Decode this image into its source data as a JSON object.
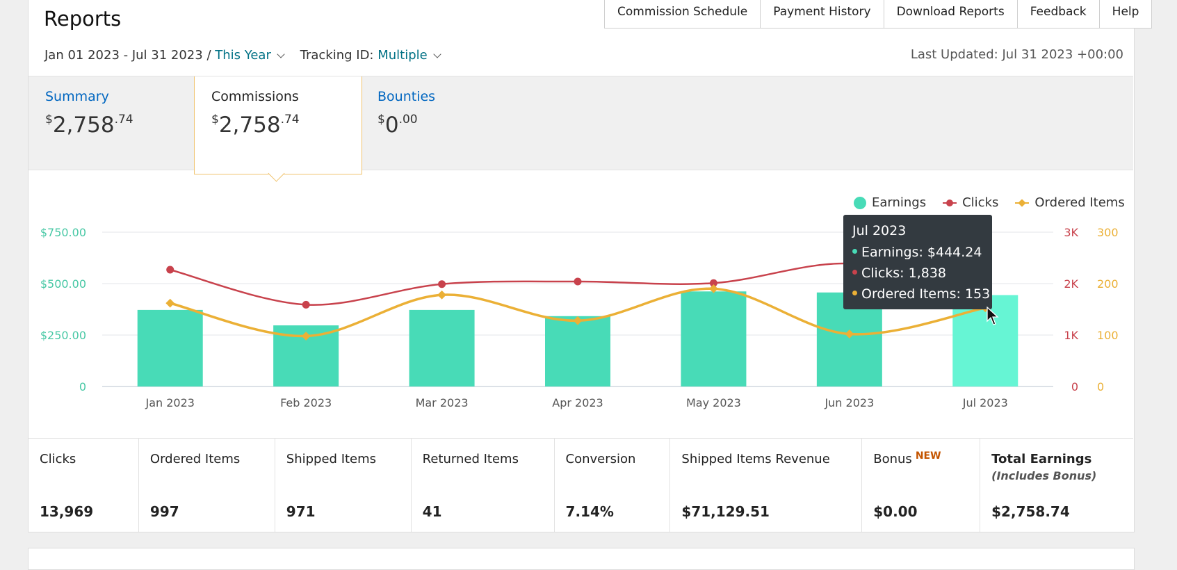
{
  "header": {
    "title": "Reports"
  },
  "top_links": [
    "Commission Schedule",
    "Payment History",
    "Download Reports",
    "Feedback",
    "Help"
  ],
  "filters": {
    "date_range": "Jan 01 2023 - Jul 31 2023 /",
    "period": "This Year",
    "tracking_label": "Tracking ID:",
    "tracking_value": "Multiple"
  },
  "last_updated": "Last Updated: Jul 31 2023 +00:00",
  "tabs": [
    {
      "label": "Summary",
      "currency": "$",
      "whole": "2,758",
      "cents": ".74"
    },
    {
      "label": "Commissions",
      "currency": "$",
      "whole": "2,758",
      "cents": ".74"
    },
    {
      "label": "Bounties",
      "currency": "$",
      "whole": "0",
      "cents": ".00"
    }
  ],
  "legend": [
    "Earnings",
    "Clicks",
    "Ordered Items"
  ],
  "tooltip": {
    "title": "Jul 2023",
    "rows": [
      "Earnings: $444.24",
      "Clicks: 1,838",
      "Ordered Items: 153"
    ]
  },
  "chart_data": {
    "type": "bar",
    "categories": [
      "Jan 2023",
      "Feb 2023",
      "Mar 2023",
      "Apr 2023",
      "May 2023",
      "Jun 2023",
      "Jul 2023"
    ],
    "series": [
      {
        "name": "Earnings",
        "type": "bar",
        "axis": "left",
        "values": [
          372,
          297,
          372,
          342,
          462,
          457,
          444.24
        ]
      },
      {
        "name": "Clicks",
        "type": "line",
        "axis": "right1",
        "values": [
          2270,
          1590,
          1990,
          2040,
          2010,
          2390,
          1838
        ]
      },
      {
        "name": "Ordered Items",
        "type": "line",
        "axis": "right2",
        "values": [
          162,
          98,
          178,
          128,
          190,
          102,
          153
        ]
      }
    ],
    "y_left": {
      "ticks": [
        "0",
        "$250.00",
        "$500.00",
        "$750.00"
      ],
      "range": [
        0,
        750
      ]
    },
    "y_right1": {
      "ticks": [
        "0",
        "1K",
        "2K",
        "3K"
      ],
      "range": [
        0,
        3000
      ]
    },
    "y_right2": {
      "ticks": [
        "0",
        "100",
        "200",
        "300"
      ],
      "range": [
        0,
        300
      ]
    },
    "grid": true,
    "legend_position": "top-right",
    "highlighted_category": "Jul 2023",
    "colors": {
      "earnings": "#48dbb7",
      "earnings_hover": "#66f5d4",
      "clicks": "#c8424c",
      "ordered": "#ebb036",
      "left_axis": "#48c8a5"
    }
  },
  "stats": [
    {
      "label": "Clicks",
      "value": "13,969"
    },
    {
      "label": "Ordered Items",
      "value": "997"
    },
    {
      "label": "Shipped Items",
      "value": "971"
    },
    {
      "label": "Returned Items",
      "value": "41"
    },
    {
      "label": "Conversion",
      "value": "7.14%"
    },
    {
      "label": "Shipped Items Revenue",
      "value": "$71,129.51"
    },
    {
      "label": "Bonus",
      "badge": "NEW",
      "value": "$0.00"
    },
    {
      "label": "Total Earnings",
      "sub": "(Includes Bonus)",
      "value": "$2,758.74"
    }
  ]
}
